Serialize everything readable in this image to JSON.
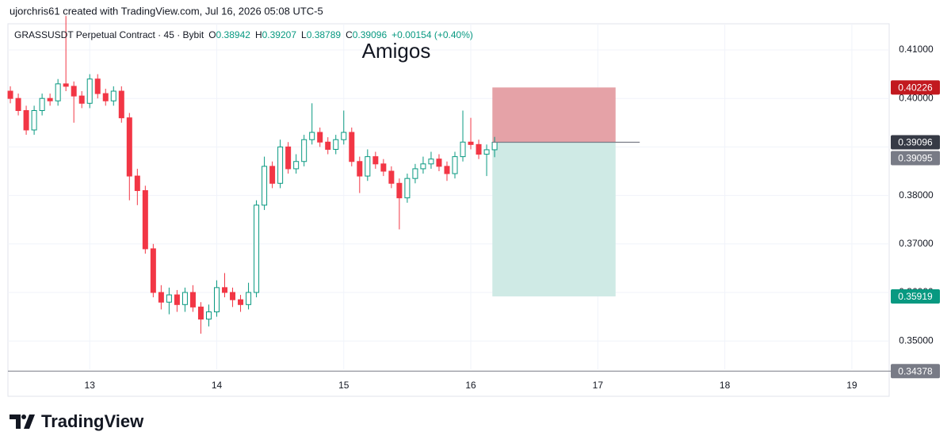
{
  "header": {
    "credit": "ujorchris61 created with TradingView.com, Jul 16, 2026 05:08 UTC-5",
    "brand": "TradingView"
  },
  "chart_data": {
    "type": "candlestick",
    "symbol": "GRASSUSDT Perpetual Contract · 45 · Bybit",
    "ohlc_letters": [
      "O",
      "H",
      "L",
      "C"
    ],
    "change": "+0.00154 (+0.40%)",
    "annotation": "Amigos",
    "up_color": "#089981",
    "down_color": "#f23645",
    "grid": true,
    "xlim": [
      12.356,
      19.294
    ],
    "xticks": [
      13,
      14,
      15,
      16,
      17,
      18,
      19
    ],
    "ylim": [
      0.34415,
      0.41539
    ],
    "yticks": [
      {
        "value": 0.35,
        "label": "0.35000"
      },
      {
        "value": 0.36,
        "label": "0.36000"
      },
      {
        "value": 0.37,
        "label": "0.37000"
      },
      {
        "value": 0.38,
        "label": "0.38000"
      },
      {
        "value": 0.39,
        "label": "0.39000"
      },
      {
        "value": 0.4,
        "label": "0.40000"
      },
      {
        "value": 0.41,
        "label": "0.41000"
      }
    ],
    "x": [
      12.375,
      12.4375,
      12.5,
      12.5625,
      12.625,
      12.6875,
      12.75,
      12.8125,
      12.875,
      12.9375,
      13,
      13.0625,
      13.125,
      13.1875,
      13.25,
      13.3125,
      13.375,
      13.4375,
      13.5,
      13.5625,
      13.625,
      13.6875,
      13.75,
      13.8125,
      13.875,
      13.9375,
      14,
      14.0625,
      14.125,
      14.1875,
      14.25,
      14.3125,
      14.375,
      14.4375,
      14.5,
      14.5625,
      14.625,
      14.6875,
      14.75,
      14.8125,
      14.875,
      14.9375,
      15,
      15.0625,
      15.125,
      15.1875,
      15.25,
      15.3125,
      15.375,
      15.4375,
      15.5,
      15.5625,
      15.625,
      15.6875,
      15.75,
      15.8125,
      15.875,
      15.9375,
      16,
      16.0625,
      16.125,
      16.1875
    ],
    "open": [
      0.4015,
      0.4,
      0.3975,
      0.3935,
      0.3975,
      0.4,
      0.3995,
      0.403,
      0.4025,
      0.4005,
      0.399,
      0.404,
      0.401,
      0.3995,
      0.4015,
      0.396,
      0.384,
      0.381,
      0.369,
      0.36,
      0.358,
      0.3595,
      0.3575,
      0.36,
      0.357,
      0.3545,
      0.356,
      0.361,
      0.36,
      0.3585,
      0.3575,
      0.36,
      0.378,
      0.386,
      0.3825,
      0.39,
      0.3855,
      0.387,
      0.3915,
      0.393,
      0.391,
      0.3895,
      0.3915,
      0.393,
      0.387,
      0.384,
      0.388,
      0.3865,
      0.385,
      0.3825,
      0.3795,
      0.3835,
      0.3855,
      0.3865,
      0.3875,
      0.386,
      0.3845,
      0.388,
      0.391,
      0.3905,
      0.3885,
      0.38942
    ],
    "high": [
      0.4025,
      0.401,
      0.3985,
      0.3985,
      0.401,
      0.401,
      0.404,
      0.417,
      0.4035,
      0.4015,
      0.405,
      0.405,
      0.402,
      0.4025,
      0.4025,
      0.397,
      0.3855,
      0.382,
      0.37,
      0.3615,
      0.361,
      0.3605,
      0.361,
      0.3615,
      0.358,
      0.3575,
      0.3625,
      0.364,
      0.361,
      0.3595,
      0.362,
      0.379,
      0.388,
      0.387,
      0.3915,
      0.391,
      0.3885,
      0.3925,
      0.399,
      0.394,
      0.392,
      0.3925,
      0.3975,
      0.394,
      0.388,
      0.3895,
      0.389,
      0.3875,
      0.386,
      0.3835,
      0.3845,
      0.3865,
      0.388,
      0.389,
      0.3885,
      0.387,
      0.389,
      0.3975,
      0.396,
      0.3915,
      0.3905,
      0.39207
    ],
    "low": [
      0.399,
      0.3965,
      0.3925,
      0.3925,
      0.3965,
      0.3985,
      0.3985,
      0.4015,
      0.395,
      0.398,
      0.398,
      0.4,
      0.3985,
      0.3985,
      0.395,
      0.379,
      0.378,
      0.368,
      0.359,
      0.3565,
      0.3555,
      0.356,
      0.356,
      0.356,
      0.3515,
      0.353,
      0.355,
      0.359,
      0.357,
      0.356,
      0.3565,
      0.359,
      0.377,
      0.3815,
      0.3815,
      0.3845,
      0.3845,
      0.386,
      0.3905,
      0.39,
      0.3885,
      0.3885,
      0.3905,
      0.386,
      0.3805,
      0.383,
      0.3855,
      0.384,
      0.3815,
      0.373,
      0.3785,
      0.3825,
      0.3845,
      0.3855,
      0.385,
      0.383,
      0.3835,
      0.387,
      0.3895,
      0.3875,
      0.384,
      0.38789
    ],
    "close": [
      0.4,
      0.3975,
      0.3935,
      0.3975,
      0.4,
      0.3995,
      0.403,
      0.4025,
      0.4005,
      0.399,
      0.404,
      0.401,
      0.3995,
      0.4015,
      0.396,
      0.384,
      0.381,
      0.369,
      0.36,
      0.358,
      0.3595,
      0.3575,
      0.36,
      0.357,
      0.3545,
      0.356,
      0.361,
      0.36,
      0.3585,
      0.3575,
      0.36,
      0.378,
      0.386,
      0.3825,
      0.39,
      0.3855,
      0.387,
      0.3915,
      0.393,
      0.391,
      0.3895,
      0.3915,
      0.393,
      0.387,
      0.384,
      0.388,
      0.3865,
      0.385,
      0.3825,
      0.3795,
      0.3835,
      0.3855,
      0.3865,
      0.3875,
      0.386,
      0.3845,
      0.388,
      0.391,
      0.3905,
      0.3885,
      0.38942,
      0.39096
    ],
    "position": {
      "entry": 0.39096,
      "stop": 0.40226,
      "target": 0.35919,
      "start": 16.17,
      "end": 17.14,
      "line_end": 17.33,
      "stop_color": "#e5a2a7",
      "target_color": "#cfeae5"
    },
    "price_labels": [
      {
        "value": 0.40226,
        "color": "#c2191f"
      },
      {
        "value": 0.39096,
        "color": "#363a45"
      },
      {
        "value": 0.39095,
        "color": "#787b86"
      },
      {
        "value": 0.35919,
        "color": "#089981"
      },
      {
        "value": 0.34378,
        "color": "#787b86"
      }
    ]
  }
}
